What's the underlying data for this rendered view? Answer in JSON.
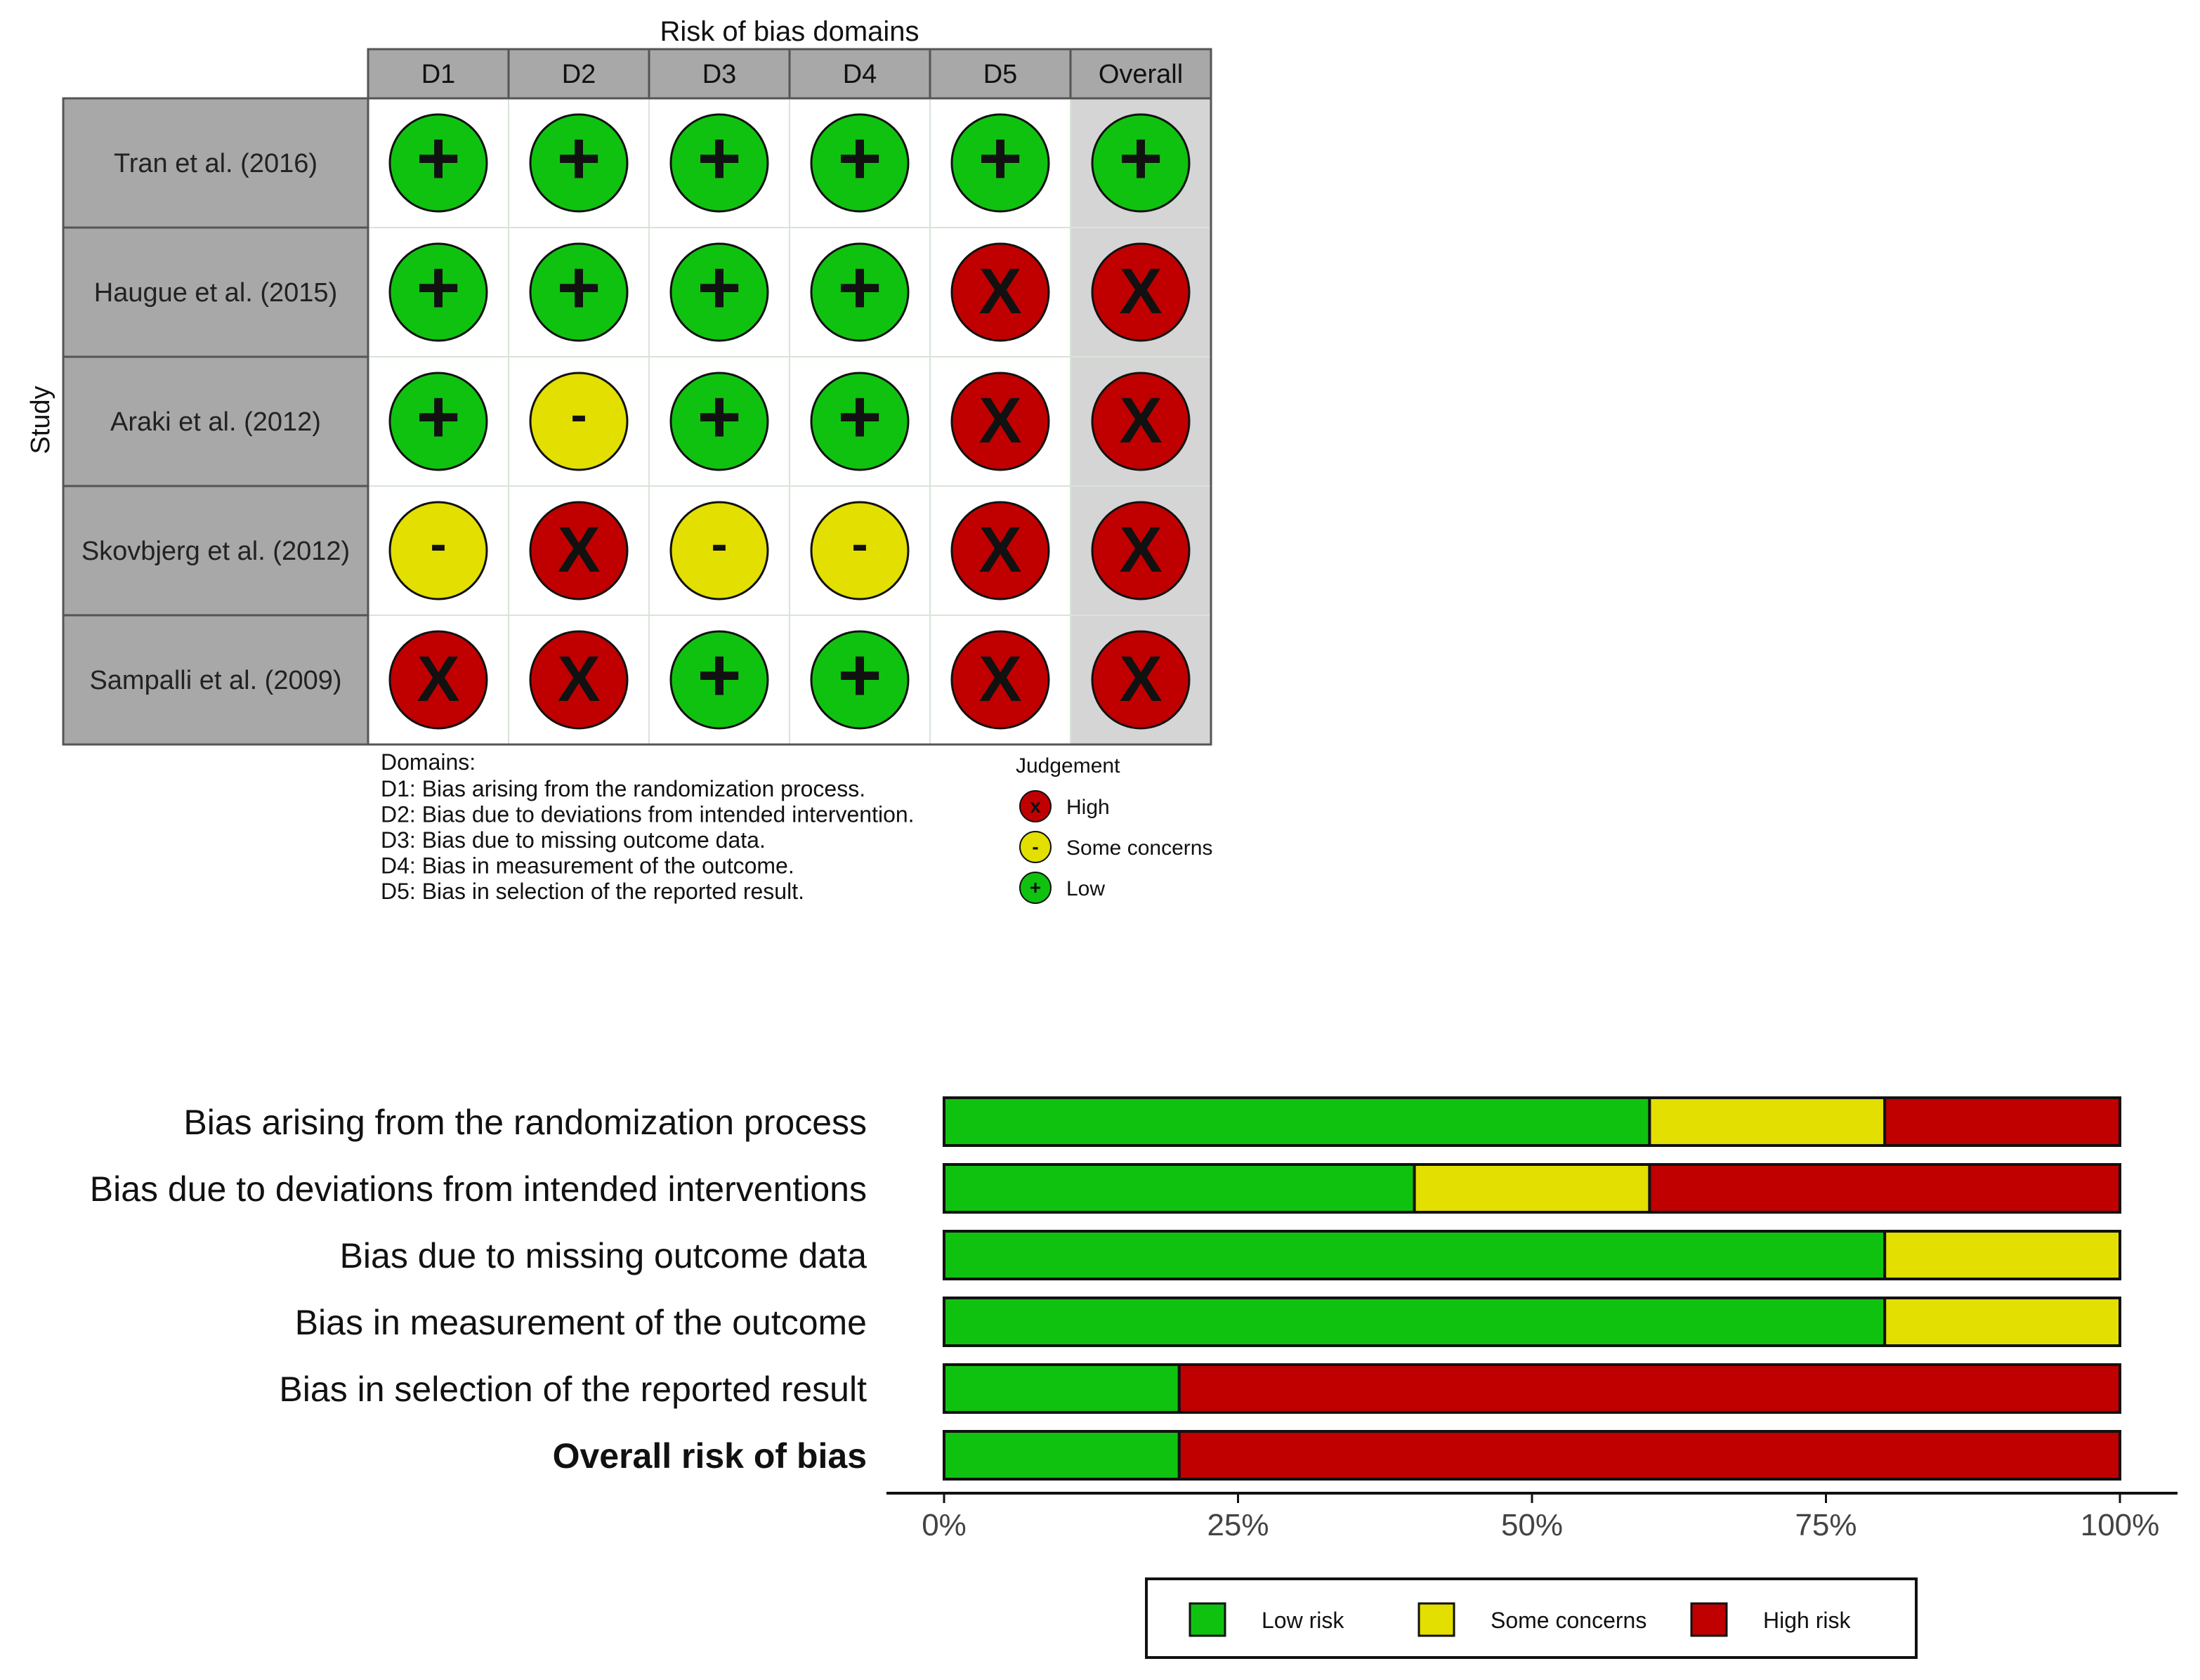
{
  "colors": {
    "low": "#10c210",
    "some": "#e3df00",
    "high": "#c00000",
    "header_bg": "#a8a8a8",
    "study_bg": "#a8a8a8",
    "overall_bg": "#d5d5d5",
    "border": "#555555"
  },
  "chart_data": [
    {
      "type": "table",
      "title": "Risk of bias domains",
      "ylabel": "Study",
      "columns": [
        "D1",
        "D2",
        "D3",
        "D4",
        "D5",
        "Overall"
      ],
      "rows": [
        {
          "study": "Tran et al. (2016)",
          "judgements": [
            "Low",
            "Low",
            "Low",
            "Low",
            "Low",
            "Low"
          ]
        },
        {
          "study": "Haugue et al. (2015)",
          "judgements": [
            "Low",
            "Low",
            "Low",
            "Low",
            "High",
            "High"
          ]
        },
        {
          "study": "Araki et al. (2012)",
          "judgements": [
            "Low",
            "Some concerns",
            "Low",
            "Low",
            "High",
            "High"
          ]
        },
        {
          "study": "Skovbjerg et al. (2012)",
          "judgements": [
            "Some concerns",
            "High",
            "Some concerns",
            "Some concerns",
            "High",
            "High"
          ]
        },
        {
          "study": "Sampalli et al. (2009)",
          "judgements": [
            "High",
            "High",
            "Low",
            "Low",
            "High",
            "High"
          ]
        }
      ],
      "symbols": {
        "Low": "+",
        "Some concerns": "-",
        "High": "X"
      },
      "domains_note": {
        "heading": "Domains:",
        "lines": [
          "D1: Bias arising from the randomization process.",
          "D2: Bias due to deviations from intended intervention.",
          "D3: Bias due to missing outcome data.",
          "D4: Bias in measurement of the outcome.",
          "D5: Bias in selection of the reported result."
        ]
      },
      "legend": {
        "title": "Judgement",
        "items": [
          {
            "key": "High",
            "label": "High",
            "symbol": "x"
          },
          {
            "key": "Some concerns",
            "label": "Some concerns",
            "symbol": "-"
          },
          {
            "key": "Low",
            "label": "Low",
            "symbol": "+"
          }
        ]
      }
    },
    {
      "type": "bar",
      "orientation": "horizontal",
      "stacked": true,
      "categories": [
        "Bias arising from the randomization process",
        "Bias due to deviations from intended interventions",
        "Bias due to missing outcome data",
        "Bias in measurement of the outcome",
        "Bias in selection of the reported result",
        "Overall risk of bias"
      ],
      "bold_category": "Overall risk of bias",
      "series": [
        {
          "name": "Low risk",
          "values": [
            60,
            40,
            80,
            80,
            20,
            20
          ]
        },
        {
          "name": "Some concerns",
          "values": [
            20,
            20,
            20,
            20,
            0,
            0
          ]
        },
        {
          "name": "High risk",
          "values": [
            20,
            40,
            0,
            0,
            80,
            80
          ]
        }
      ],
      "xlim": [
        0,
        100
      ],
      "xticks": [
        "0%",
        "25%",
        "50%",
        "75%",
        "100%"
      ],
      "legend": {
        "position": "bottom",
        "items": [
          "Low risk",
          "Some concerns",
          "High risk"
        ]
      }
    }
  ]
}
